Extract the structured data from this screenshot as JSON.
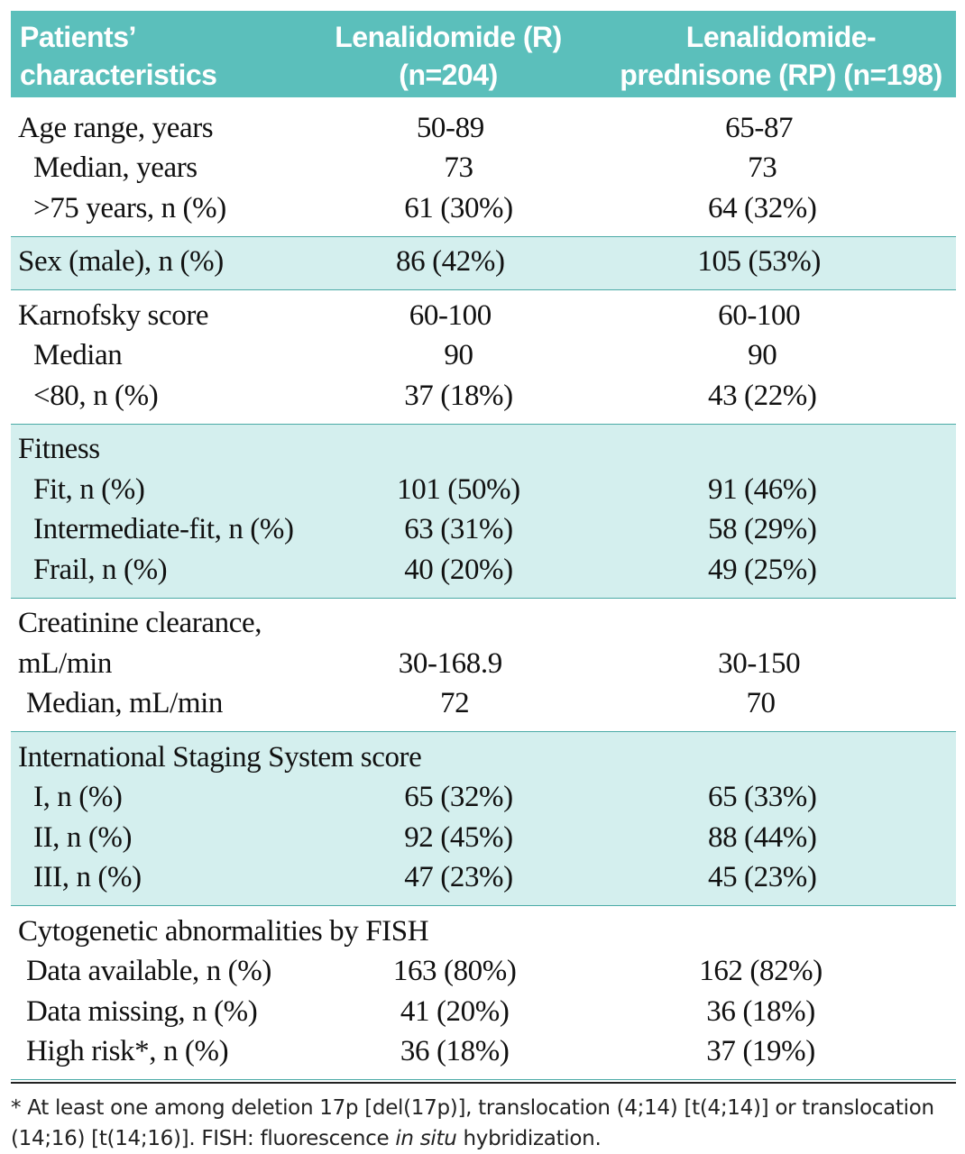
{
  "header": {
    "col0": [
      "Patients’",
      "characteristics"
    ],
    "col1": [
      "Lenalidomide (R)",
      "(n=204)"
    ],
    "col2": [
      "Lenalidomide-",
      "prednisone (RP) (n=198)"
    ]
  },
  "groups": [
    {
      "shaded": false,
      "rows": [
        {
          "label": "Age range, years",
          "r": "50-89",
          "rp": "65-87"
        },
        {
          "label": "Median, years",
          "r": "73",
          "rp": "73"
        },
        {
          "label": ">75 years, n (%)",
          "r": "61 (30%)",
          "rp": "64 (32%)"
        }
      ]
    },
    {
      "shaded": true,
      "rows": [
        {
          "label": "Sex (male), n (%)",
          "r": "86 (42%)",
          "rp": "105 (53%)"
        }
      ]
    },
    {
      "shaded": false,
      "rows": [
        {
          "label": "Karnofsky score",
          "r": "60-100",
          "rp": "60-100"
        },
        {
          "label": "Median",
          "r": "90",
          "rp": "90"
        },
        {
          "label": "<80, n (%)",
          "r": "37 (18%)",
          "rp": "43 (22%)"
        }
      ]
    },
    {
      "shaded": true,
      "rows": [
        {
          "label": "Fitness",
          "r": "",
          "rp": ""
        },
        {
          "label": "Fit, n (%)",
          "r": "101 (50%)",
          "rp": "91 (46%)"
        },
        {
          "label": "Intermediate-fit, n (%)",
          "r": "63 (31%)",
          "rp": "58 (29%)"
        },
        {
          "label": "Frail, n (%)",
          "r": "40 (20%)",
          "rp": "49 (25%)"
        }
      ]
    },
    {
      "shaded": false,
      "rows": [
        {
          "label": "Creatinine clearance,",
          "r": "",
          "rp": ""
        },
        {
          "label": "mL/min",
          "r": "30-168.9",
          "rp": "30-150"
        },
        {
          "label": "Median, mL/min",
          "r": "72",
          "rp": "70"
        }
      ]
    },
    {
      "shaded": true,
      "rows": [
        {
          "label": "International Staging System score",
          "r": "",
          "rp": ""
        },
        {
          "label": "I, n (%)",
          "r": "65 (32%)",
          "rp": "65 (33%)"
        },
        {
          "label": "II, n (%)",
          "r": "92 (45%)",
          "rp": "88 (44%)"
        },
        {
          "label": "III, n (%)",
          "r": "47 (23%)",
          "rp": "45 (23%)"
        }
      ]
    },
    {
      "shaded": false,
      "rows": [
        {
          "label": "Cytogenetic abnormalities by FISH",
          "r": "",
          "rp": ""
        },
        {
          "label": "Data available, n (%)",
          "r": "163 (80%)",
          "rp": "162 (82%)"
        },
        {
          "label": "Data missing, n (%)",
          "r": "41 (20%)",
          "rp": "36 (18%)"
        },
        {
          "label": "High risk*, n (%)",
          "r": "36 (18%)",
          "rp": "37 (19%)"
        }
      ]
    }
  ],
  "footnote": {
    "part1": "* At least one among deletion 17p [del(17p)], translocation (4;14) [t(4;14)] or translocation (14;16) [t(14;16)]. FISH: fluorescence ",
    "italic": "in situ",
    "part2": " hybridization."
  }
}
